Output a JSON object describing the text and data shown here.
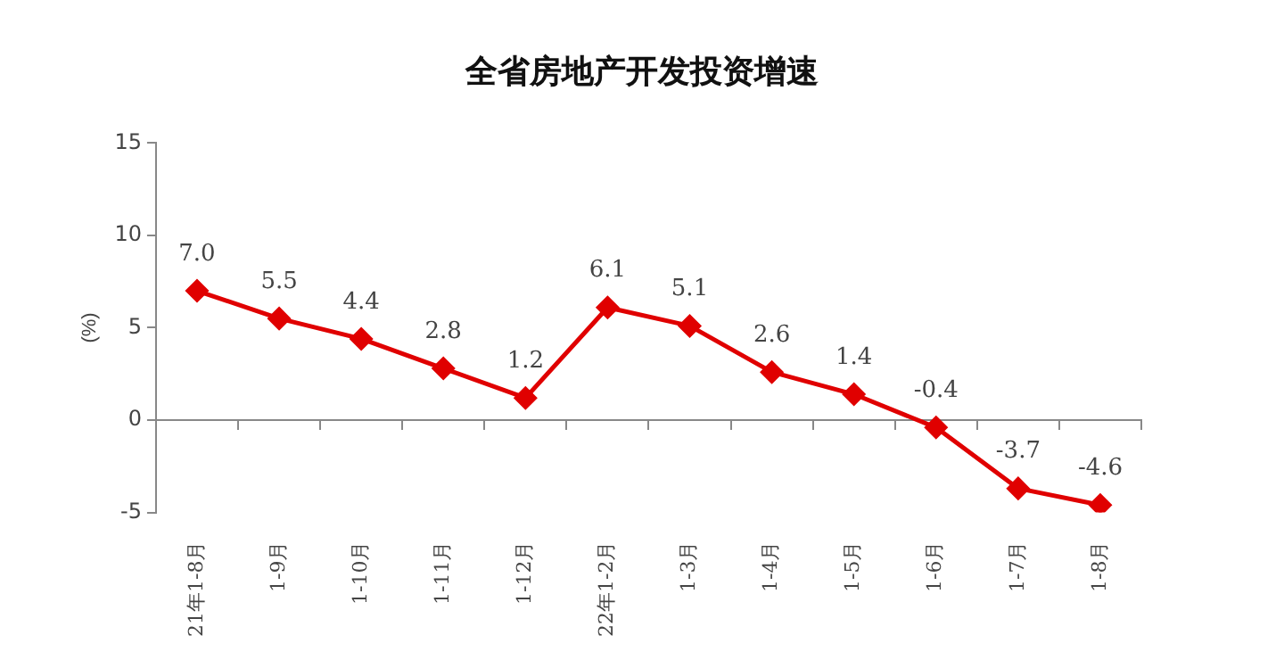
{
  "chart_data": {
    "type": "line",
    "title": "全省房地产开发投资增速",
    "ylabel": "(%)",
    "categories": [
      "21年1-8月",
      "1-9月",
      "1-10月",
      "1-11月",
      "1-12月",
      "22年1-2月",
      "1-3月",
      "1-4月",
      "1-5月",
      "1-6月",
      "1-7月",
      "1-8月"
    ],
    "series": [
      {
        "color": "#e00000",
        "values": [
          7.0,
          5.5,
          4.4,
          2.8,
          1.2,
          6.1,
          5.1,
          2.6,
          1.4,
          -0.4,
          -3.7,
          -4.6
        ],
        "value_labels": [
          "7.0",
          "5.5",
          "4.4",
          "2.8",
          "1.2",
          "6.1",
          "5.1",
          "2.6",
          "1.4",
          "-0.4",
          "-3.7",
          "-4.6"
        ]
      }
    ],
    "ylim": [
      -5,
      15
    ],
    "yticks": [
      -5,
      0,
      5,
      10,
      15
    ],
    "legend": false,
    "marker": "diamond",
    "line_style": "solid"
  }
}
